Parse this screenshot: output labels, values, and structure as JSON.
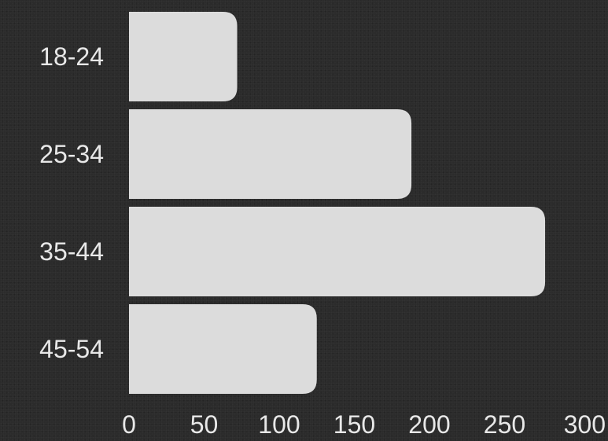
{
  "colors": {
    "background": "#2b2b2b",
    "bar": "#dcdcdc",
    "text": "#e8e8e8"
  },
  "chart_data": {
    "type": "bar",
    "orientation": "horizontal",
    "title": "",
    "xlabel": "",
    "ylabel": "",
    "categories": [
      "18-24",
      "25-34",
      "35-44",
      "45-54"
    ],
    "values": [
      72,
      188,
      277,
      125
    ],
    "xlim": [
      0,
      300
    ],
    "xticks": [
      "0",
      "50",
      "100",
      "150",
      "200",
      "250",
      "300"
    ],
    "grid": false,
    "legend": "none"
  }
}
